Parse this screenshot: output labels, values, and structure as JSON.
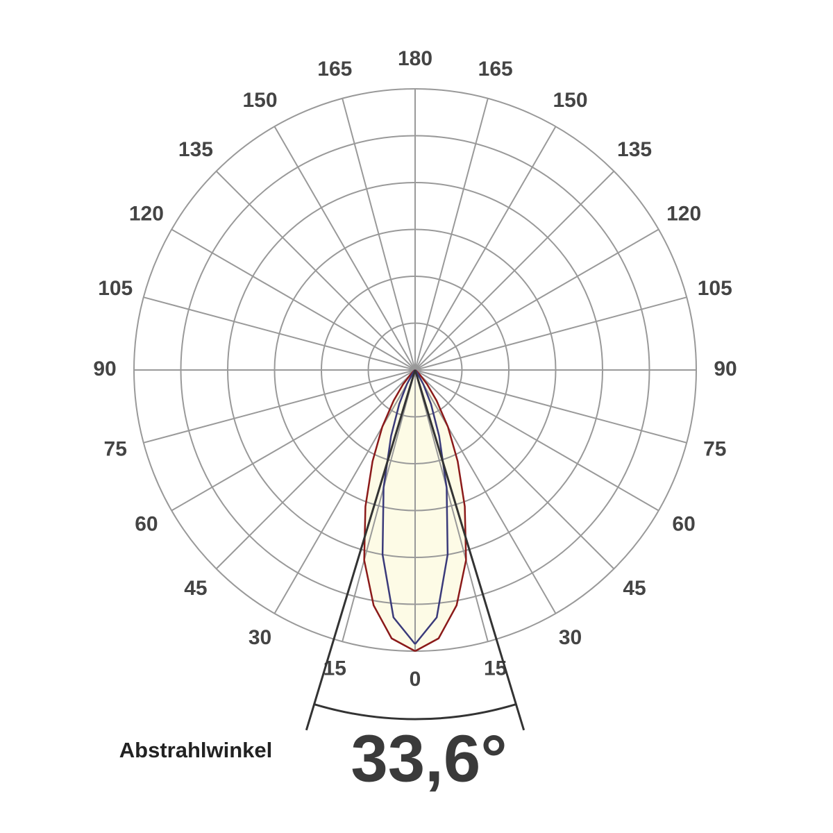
{
  "chart_data": {
    "type": "polar",
    "thetaticks": [
      0,
      15,
      30,
      45,
      60,
      75,
      90,
      105,
      120,
      135,
      150,
      165,
      180
    ],
    "rlim": [
      0,
      6
    ],
    "rticks": [
      1,
      2,
      3,
      4,
      5,
      6
    ],
    "grid": true,
    "fill_color": "#fdfbe6",
    "series": [
      {
        "color": "#8b1a1a",
        "theta": [
          0,
          5,
          10,
          15,
          20,
          25,
          30,
          35,
          40,
          45,
          50,
          60
        ],
        "values": [
          6.0,
          5.75,
          5.1,
          4.2,
          3.1,
          2.15,
          1.4,
          0.8,
          0.4,
          0.15,
          0.05,
          0
        ]
      },
      {
        "color": "#3a3a7a",
        "theta": [
          0,
          5,
          10,
          15,
          20,
          25,
          30,
          35,
          40,
          45
        ],
        "values": [
          5.85,
          5.3,
          4.0,
          2.6,
          1.5,
          0.8,
          0.35,
          0.1,
          0.02,
          0
        ]
      }
    ],
    "beam_angle": {
      "label": "Abstrahlwinkel",
      "value": 33.6,
      "value_label": "33,6°"
    }
  }
}
